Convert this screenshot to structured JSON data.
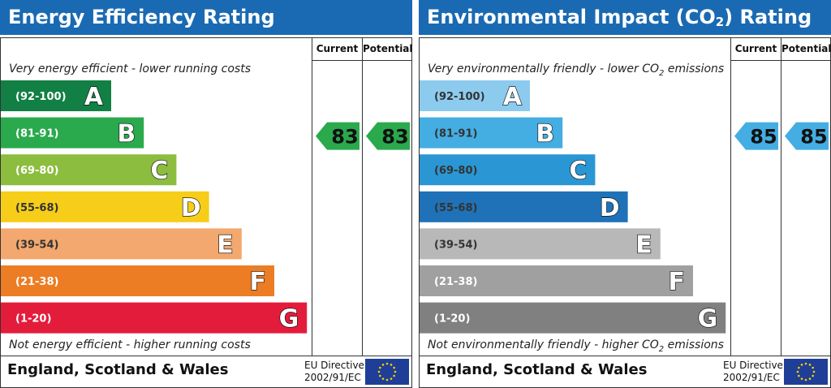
{
  "charts": [
    {
      "id": "energy",
      "title": "Energy Efficiency Rating",
      "column_current": "Current",
      "column_potential": "Potential",
      "top_caption": "Very energy efficient - lower running costs",
      "bottom_caption": "Not energy efficient - higher running costs",
      "region": "England, Scotland & Wales",
      "directive_line1": "EU Directive",
      "directive_line2": "2002/91/EC",
      "flag_icon": "eu-flag-icon"
    },
    {
      "id": "environment",
      "title_prefix": "Environmental Impact (CO",
      "title_sub": "2",
      "title_suffix": ") Rating",
      "column_current": "Current",
      "column_potential": "Potential",
      "top_caption_prefix": "Very environmentally friendly - lower CO",
      "top_caption_sub": "2",
      "top_caption_suffix": " emissions",
      "bottom_caption_prefix": "Not environmentally friendly - higher CO",
      "bottom_caption_sub": "2",
      "bottom_caption_suffix": " emissions",
      "region": "England, Scotland & Wales",
      "directive_line1": "EU Directive",
      "directive_line2": "2002/91/EC",
      "flag_icon": "eu-flag-icon"
    }
  ],
  "chart_data": [
    {
      "type": "bar",
      "chart": "energy",
      "categories": [
        "A",
        "B",
        "C",
        "D",
        "E",
        "F",
        "G"
      ],
      "ranges": [
        "(92-100)",
        "(81-91)",
        "(69-80)",
        "(55-68)",
        "(39-54)",
        "(21-38)",
        "(1-20)"
      ],
      "colors": [
        "#128044",
        "#2aa94d",
        "#8cbd3f",
        "#f6cd18",
        "#f2a86e",
        "#ec7d24",
        "#e41c3c"
      ],
      "range_text_colors": [
        "#ffffff",
        "#ffffff",
        "#ffffff",
        "#333333",
        "#333333",
        "#ffffff",
        "#ffffff"
      ],
      "current": 83,
      "potential": 83,
      "current_band": "B",
      "potential_band": "B",
      "arrow_color": "#2aa94d"
    },
    {
      "type": "bar",
      "chart": "environment",
      "categories": [
        "A",
        "B",
        "C",
        "D",
        "E",
        "F",
        "G"
      ],
      "ranges": [
        "(92-100)",
        "(81-91)",
        "(69-80)",
        "(55-68)",
        "(39-54)",
        "(21-38)",
        "(1-20)"
      ],
      "colors": [
        "#8ccbee",
        "#44ade2",
        "#2a97d4",
        "#1f72b8",
        "#b8b8b8",
        "#a0a0a0",
        "#808080"
      ],
      "range_text_colors": [
        "#333333",
        "#333333",
        "#333333",
        "#333333",
        "#333333",
        "#ffffff",
        "#ffffff"
      ],
      "current": 85,
      "potential": 85,
      "current_band": "B",
      "potential_band": "B",
      "arrow_color": "#44ade2"
    }
  ]
}
